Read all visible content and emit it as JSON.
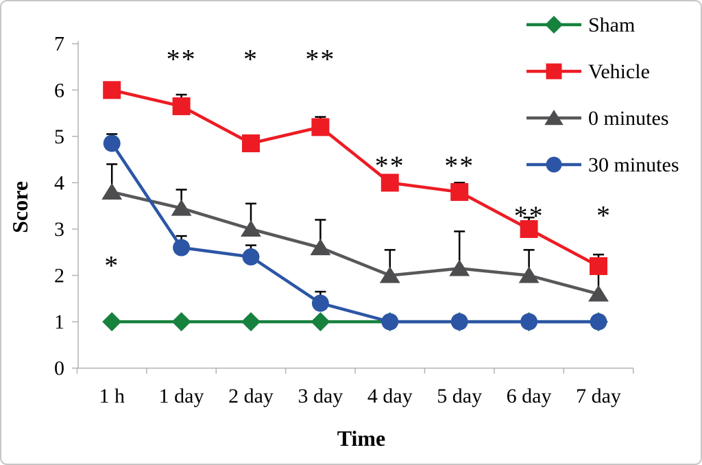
{
  "chart_data": {
    "type": "line",
    "title": "",
    "xlabel": "Time",
    "ylabel": "Score",
    "ylim": [
      0,
      7
    ],
    "yticks": [
      "0",
      "1",
      "2",
      "3",
      "4",
      "5",
      "6",
      "7"
    ],
    "categories": [
      "1 h",
      "1 day",
      "2 day",
      "3 day",
      "4 day",
      "5 day",
      "6 day",
      "7 day"
    ],
    "grid": "off",
    "legend_position": "top-right",
    "error_bars": "upper only, black caps",
    "series": [
      {
        "name": "Sham",
        "marker": "diamond",
        "color": "#17813E",
        "values": [
          1,
          1,
          1,
          1,
          1,
          1,
          1,
          1
        ],
        "err_up": [
          0,
          0,
          0,
          0,
          0,
          0,
          0,
          0
        ]
      },
      {
        "name": "Vehicle",
        "marker": "square",
        "color": "#ED1C24",
        "values": [
          6.0,
          5.65,
          4.85,
          5.2,
          4.0,
          3.8,
          3.0,
          2.2
        ],
        "err_up": [
          0.1,
          0.25,
          0.15,
          0.22,
          0.1,
          0.2,
          0.25,
          0.25
        ]
      },
      {
        "name": "0 minutes",
        "marker": "triangle",
        "color": "#4D4D4F",
        "line_color": "#58585A",
        "values": [
          3.8,
          3.45,
          3.0,
          2.6,
          2.0,
          2.15,
          2.0,
          1.6
        ],
        "err_up": [
          0.6,
          0.4,
          0.55,
          0.6,
          0.55,
          0.8,
          0.55,
          0.45
        ]
      },
      {
        "name": "30 minutes",
        "marker": "circle",
        "color": "#2C55A5",
        "values": [
          4.85,
          2.6,
          2.4,
          1.4,
          1.0,
          1.0,
          1.0,
          1.0
        ],
        "err_up": [
          0.2,
          0.25,
          0.25,
          0.25,
          0,
          0,
          0,
          0
        ]
      }
    ],
    "annotations": [
      {
        "category": 0,
        "score": 2.3,
        "text": "*"
      },
      {
        "category": 1,
        "score": 6.75,
        "text": "**"
      },
      {
        "category": 2,
        "score": 6.75,
        "text": "*"
      },
      {
        "category": 3,
        "score": 6.75,
        "text": "**"
      },
      {
        "category": 4,
        "score": 4.45,
        "text": "**"
      },
      {
        "category": 5,
        "score": 4.45,
        "text": "**"
      },
      {
        "category": 6,
        "score": 3.37,
        "text": "**"
      },
      {
        "category": 7,
        "score": 3.38,
        "text": "*",
        "dx": 8
      }
    ],
    "axis_color": "#b3b3b3",
    "error_bar_color": "#000000"
  }
}
